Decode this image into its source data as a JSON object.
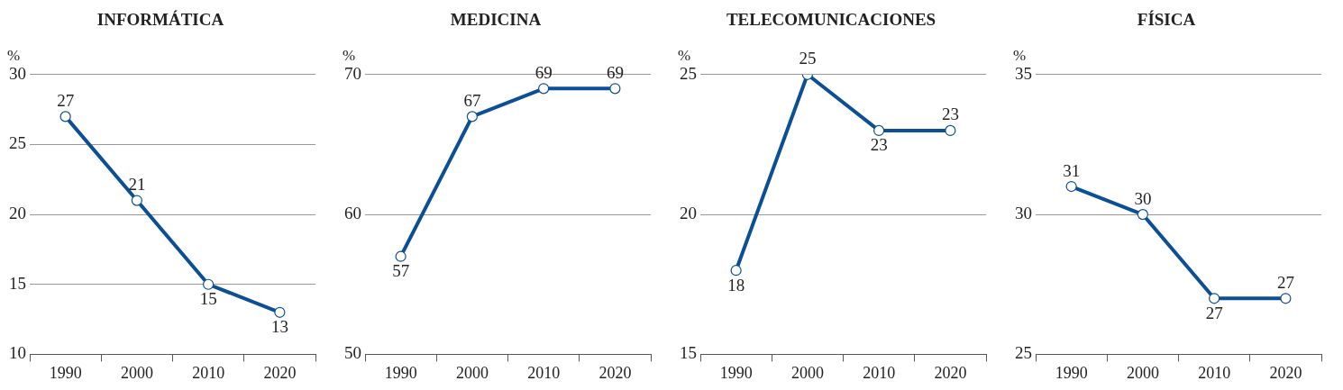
{
  "chart_data": [
    {
      "type": "line",
      "title": "INFORMÁTICA",
      "ylabel": "%",
      "categories": [
        "1990",
        "2000",
        "2010",
        "2020"
      ],
      "series": [
        {
          "color": "#0b4f96",
          "values": [
            27,
            21,
            15,
            13
          ]
        }
      ],
      "ylim": [
        10,
        30
      ],
      "yticks": [
        10,
        15,
        20,
        25,
        30
      ],
      "grid": "y",
      "marker": "circle",
      "data_labels": true,
      "legend": false
    },
    {
      "type": "line",
      "title": "MEDICINA",
      "ylabel": "%",
      "categories": [
        "1990",
        "2000",
        "2010",
        "2020"
      ],
      "series": [
        {
          "color": "#0b4f96",
          "values": [
            57,
            67,
            69,
            69
          ]
        }
      ],
      "ylim": [
        50,
        70
      ],
      "yticks": [
        50,
        60,
        70
      ],
      "grid": "y",
      "marker": "circle",
      "data_labels": true,
      "legend": false
    },
    {
      "type": "line",
      "title": "TELECOMUNICACIONES",
      "ylabel": "%",
      "categories": [
        "1990",
        "2000",
        "2010",
        "2020"
      ],
      "series": [
        {
          "color": "#0b4f96",
          "values": [
            18,
            25,
            23,
            23
          ]
        }
      ],
      "ylim": [
        15,
        25
      ],
      "yticks": [
        15,
        20,
        25
      ],
      "grid": "y",
      "marker": "circle",
      "data_labels": true,
      "legend": false
    },
    {
      "type": "line",
      "title": "FÍSICA",
      "ylabel": "%",
      "categories": [
        "1990",
        "2000",
        "2010",
        "2020"
      ],
      "series": [
        {
          "color": "#0b4f96",
          "values": [
            31,
            30,
            27,
            27
          ]
        }
      ],
      "ylim": [
        25,
        35
      ],
      "yticks": [
        25,
        30,
        35
      ],
      "grid": "y",
      "marker": "circle",
      "data_labels": true,
      "legend": false
    }
  ]
}
